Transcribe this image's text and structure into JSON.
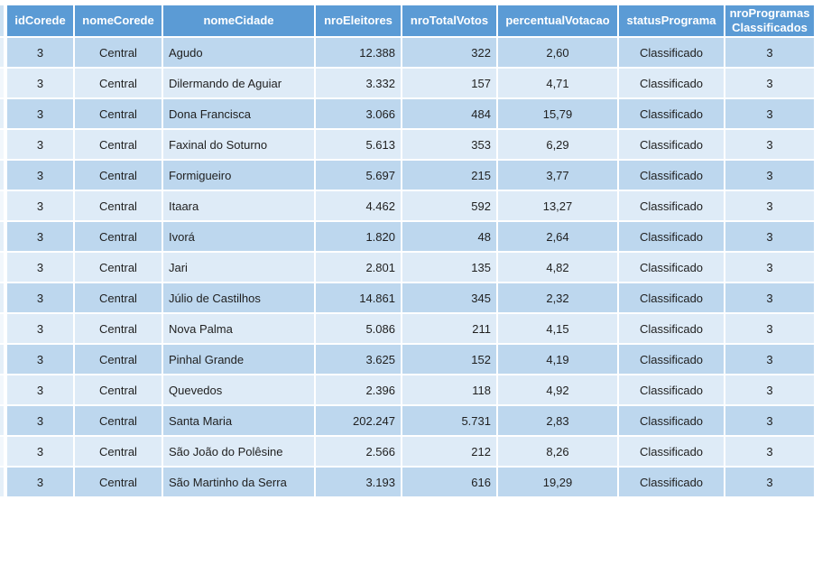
{
  "table": {
    "columns": [
      {
        "key": "idCorede",
        "label": "idCorede"
      },
      {
        "key": "nomeCorede",
        "label": "nomeCorede"
      },
      {
        "key": "nomeCidade",
        "label": "nomeCidade"
      },
      {
        "key": "nroEleitores",
        "label": "nroEleitores"
      },
      {
        "key": "nroTotalVotos",
        "label": "nroTotalVotos"
      },
      {
        "key": "percentualVotacao",
        "label": "percentualVotacao"
      },
      {
        "key": "statusPrograma",
        "label": "statusPrograma"
      },
      {
        "key": "nroProgramasClassificados",
        "label": "nroProgramas Classificados"
      }
    ],
    "rows": [
      [
        "3",
        "Central",
        "Agudo",
        "12.388",
        "322",
        "2,60",
        "Classificado",
        "3"
      ],
      [
        "3",
        "Central",
        "Dilermando de Aguiar",
        "3.332",
        "157",
        "4,71",
        "Classificado",
        "3"
      ],
      [
        "3",
        "Central",
        "Dona Francisca",
        "3.066",
        "484",
        "15,79",
        "Classificado",
        "3"
      ],
      [
        "3",
        "Central",
        "Faxinal do Soturno",
        "5.613",
        "353",
        "6,29",
        "Classificado",
        "3"
      ],
      [
        "3",
        "Central",
        "Formigueiro",
        "5.697",
        "215",
        "3,77",
        "Classificado",
        "3"
      ],
      [
        "3",
        "Central",
        "Itaara",
        "4.462",
        "592",
        "13,27",
        "Classificado",
        "3"
      ],
      [
        "3",
        "Central",
        "Ivorá",
        "1.820",
        "48",
        "2,64",
        "Classificado",
        "3"
      ],
      [
        "3",
        "Central",
        "Jari",
        "2.801",
        "135",
        "4,82",
        "Classificado",
        "3"
      ],
      [
        "3",
        "Central",
        "Júlio de Castilhos",
        "14.861",
        "345",
        "2,32",
        "Classificado",
        "3"
      ],
      [
        "3",
        "Central",
        "Nova Palma",
        "5.086",
        "211",
        "4,15",
        "Classificado",
        "3"
      ],
      [
        "3",
        "Central",
        "Pinhal Grande",
        "3.625",
        "152",
        "4,19",
        "Classificado",
        "3"
      ],
      [
        "3",
        "Central",
        "Quevedos",
        "2.396",
        "118",
        "4,92",
        "Classificado",
        "3"
      ],
      [
        "3",
        "Central",
        "Santa Maria",
        "202.247",
        "5.731",
        "2,83",
        "Classificado",
        "3"
      ],
      [
        "3",
        "Central",
        "São João do Polêsine",
        "2.566",
        "212",
        "8,26",
        "Classificado",
        "3"
      ],
      [
        "3",
        "Central",
        "São Martinho da Serra",
        "3.193",
        "616",
        "19,29",
        "Classificado",
        "3"
      ]
    ]
  },
  "colors": {
    "header_bg": "#5b9bd5",
    "header_text": "#ffffff",
    "row_dark": "#bdd7ee",
    "row_light": "#deebf7",
    "cell_text": "#1f1f1f",
    "gap": "#ffffff"
  }
}
